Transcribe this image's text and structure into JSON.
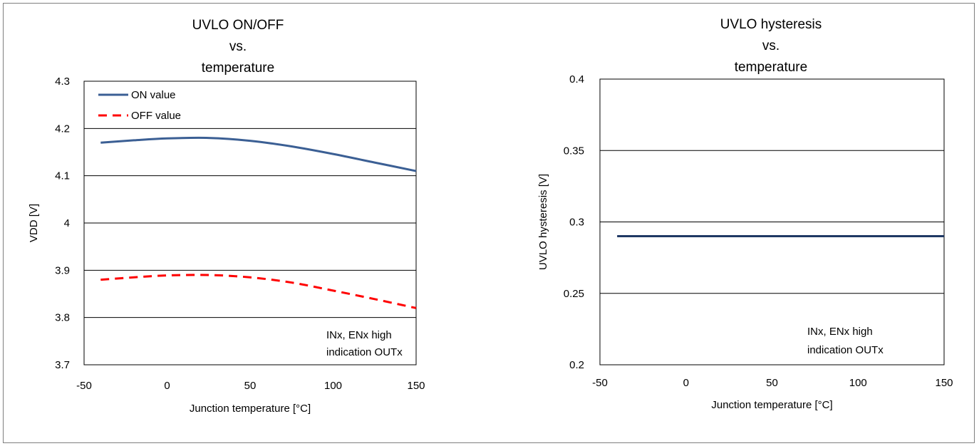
{
  "chart_data": [
    {
      "type": "line",
      "title_lines": [
        "UVLO ON/OFF",
        "vs.",
        "temperature"
      ],
      "xlabel": "Junction temperature [°C]",
      "ylabel": "VDD [V]",
      "xlim": [
        -50,
        150
      ],
      "ylim": [
        3.7,
        4.3
      ],
      "xticks": [
        -50,
        0,
        50,
        100,
        150
      ],
      "xtick_labels": [
        "-50",
        "0",
        "50",
        "100",
        "150"
      ],
      "yticks": [
        3.7,
        3.8,
        3.9,
        4.0,
        4.1,
        4.2,
        4.3
      ],
      "ytick_labels": [
        "3.7",
        "3.8",
        "3.9",
        "4",
        "4.1",
        "4.2",
        "4.3"
      ],
      "grid": "horizontal",
      "legend_position": "top-left",
      "annotation_lines": [
        "INx, ENx high",
        "indication OUTx"
      ],
      "series": [
        {
          "name": "ON value",
          "color": "#3b5f94",
          "dash": "solid",
          "x": [
            -40,
            -20,
            0,
            25,
            50,
            75,
            100,
            125,
            150
          ],
          "y": [
            4.17,
            4.175,
            4.179,
            4.18,
            4.174,
            4.162,
            4.146,
            4.128,
            4.11
          ]
        },
        {
          "name": "OFF value",
          "color": "#ff0000",
          "dash": "dashed",
          "x": [
            -40,
            -20,
            0,
            25,
            50,
            75,
            100,
            125,
            150
          ],
          "y": [
            3.88,
            3.885,
            3.889,
            3.89,
            3.885,
            3.874,
            3.857,
            3.839,
            3.82
          ]
        }
      ]
    },
    {
      "type": "line",
      "title_lines": [
        "UVLO hysteresis",
        "vs.",
        "temperature"
      ],
      "xlabel": "Junction temperature [°C]",
      "ylabel": "UVLO hysteresis [V]",
      "xlim": [
        -50,
        150
      ],
      "ylim": [
        0.2,
        0.4
      ],
      "xticks": [
        -50,
        0,
        50,
        100,
        150
      ],
      "xtick_labels": [
        "-50",
        "0",
        "50",
        "100",
        "150"
      ],
      "yticks": [
        0.2,
        0.25,
        0.3,
        0.35,
        0.4
      ],
      "ytick_labels": [
        "0.2",
        "0.25",
        "0.3",
        "0.35",
        "0.4"
      ],
      "grid": "horizontal",
      "annotation_lines": [
        "INx, ENx high",
        "indication OUTx"
      ],
      "series": [
        {
          "color": "#1f3864",
          "dash": "solid",
          "x": [
            -40,
            150
          ],
          "y": [
            0.29,
            0.29
          ]
        }
      ]
    }
  ]
}
